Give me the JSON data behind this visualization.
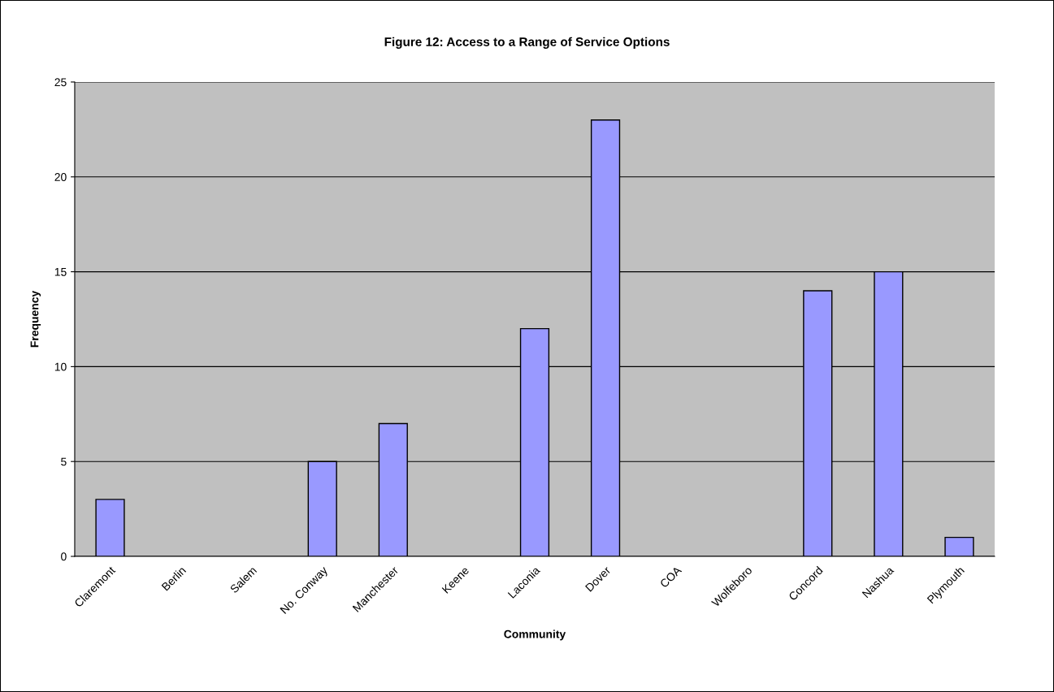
{
  "chart_data": {
    "type": "bar",
    "title": "Figure 12: Access to a Range of Service Options",
    "xlabel": "Community",
    "ylabel": "Frequency",
    "categories": [
      "Claremont",
      "Berlin",
      "Salem",
      "No. Conway",
      "Manchester",
      "Keene",
      "Laconia",
      "Dover",
      "COA",
      "Wolfeboro",
      "Concord",
      "Nashua",
      "Plymouth"
    ],
    "values": [
      3,
      0,
      0,
      5,
      7,
      0,
      12,
      23,
      0,
      0,
      14,
      15,
      1
    ],
    "color": "#9999ff",
    "ylim": [
      0,
      25
    ],
    "yticks": [
      0,
      5,
      10,
      15,
      20,
      25
    ],
    "grid": "y",
    "legend": false
  }
}
